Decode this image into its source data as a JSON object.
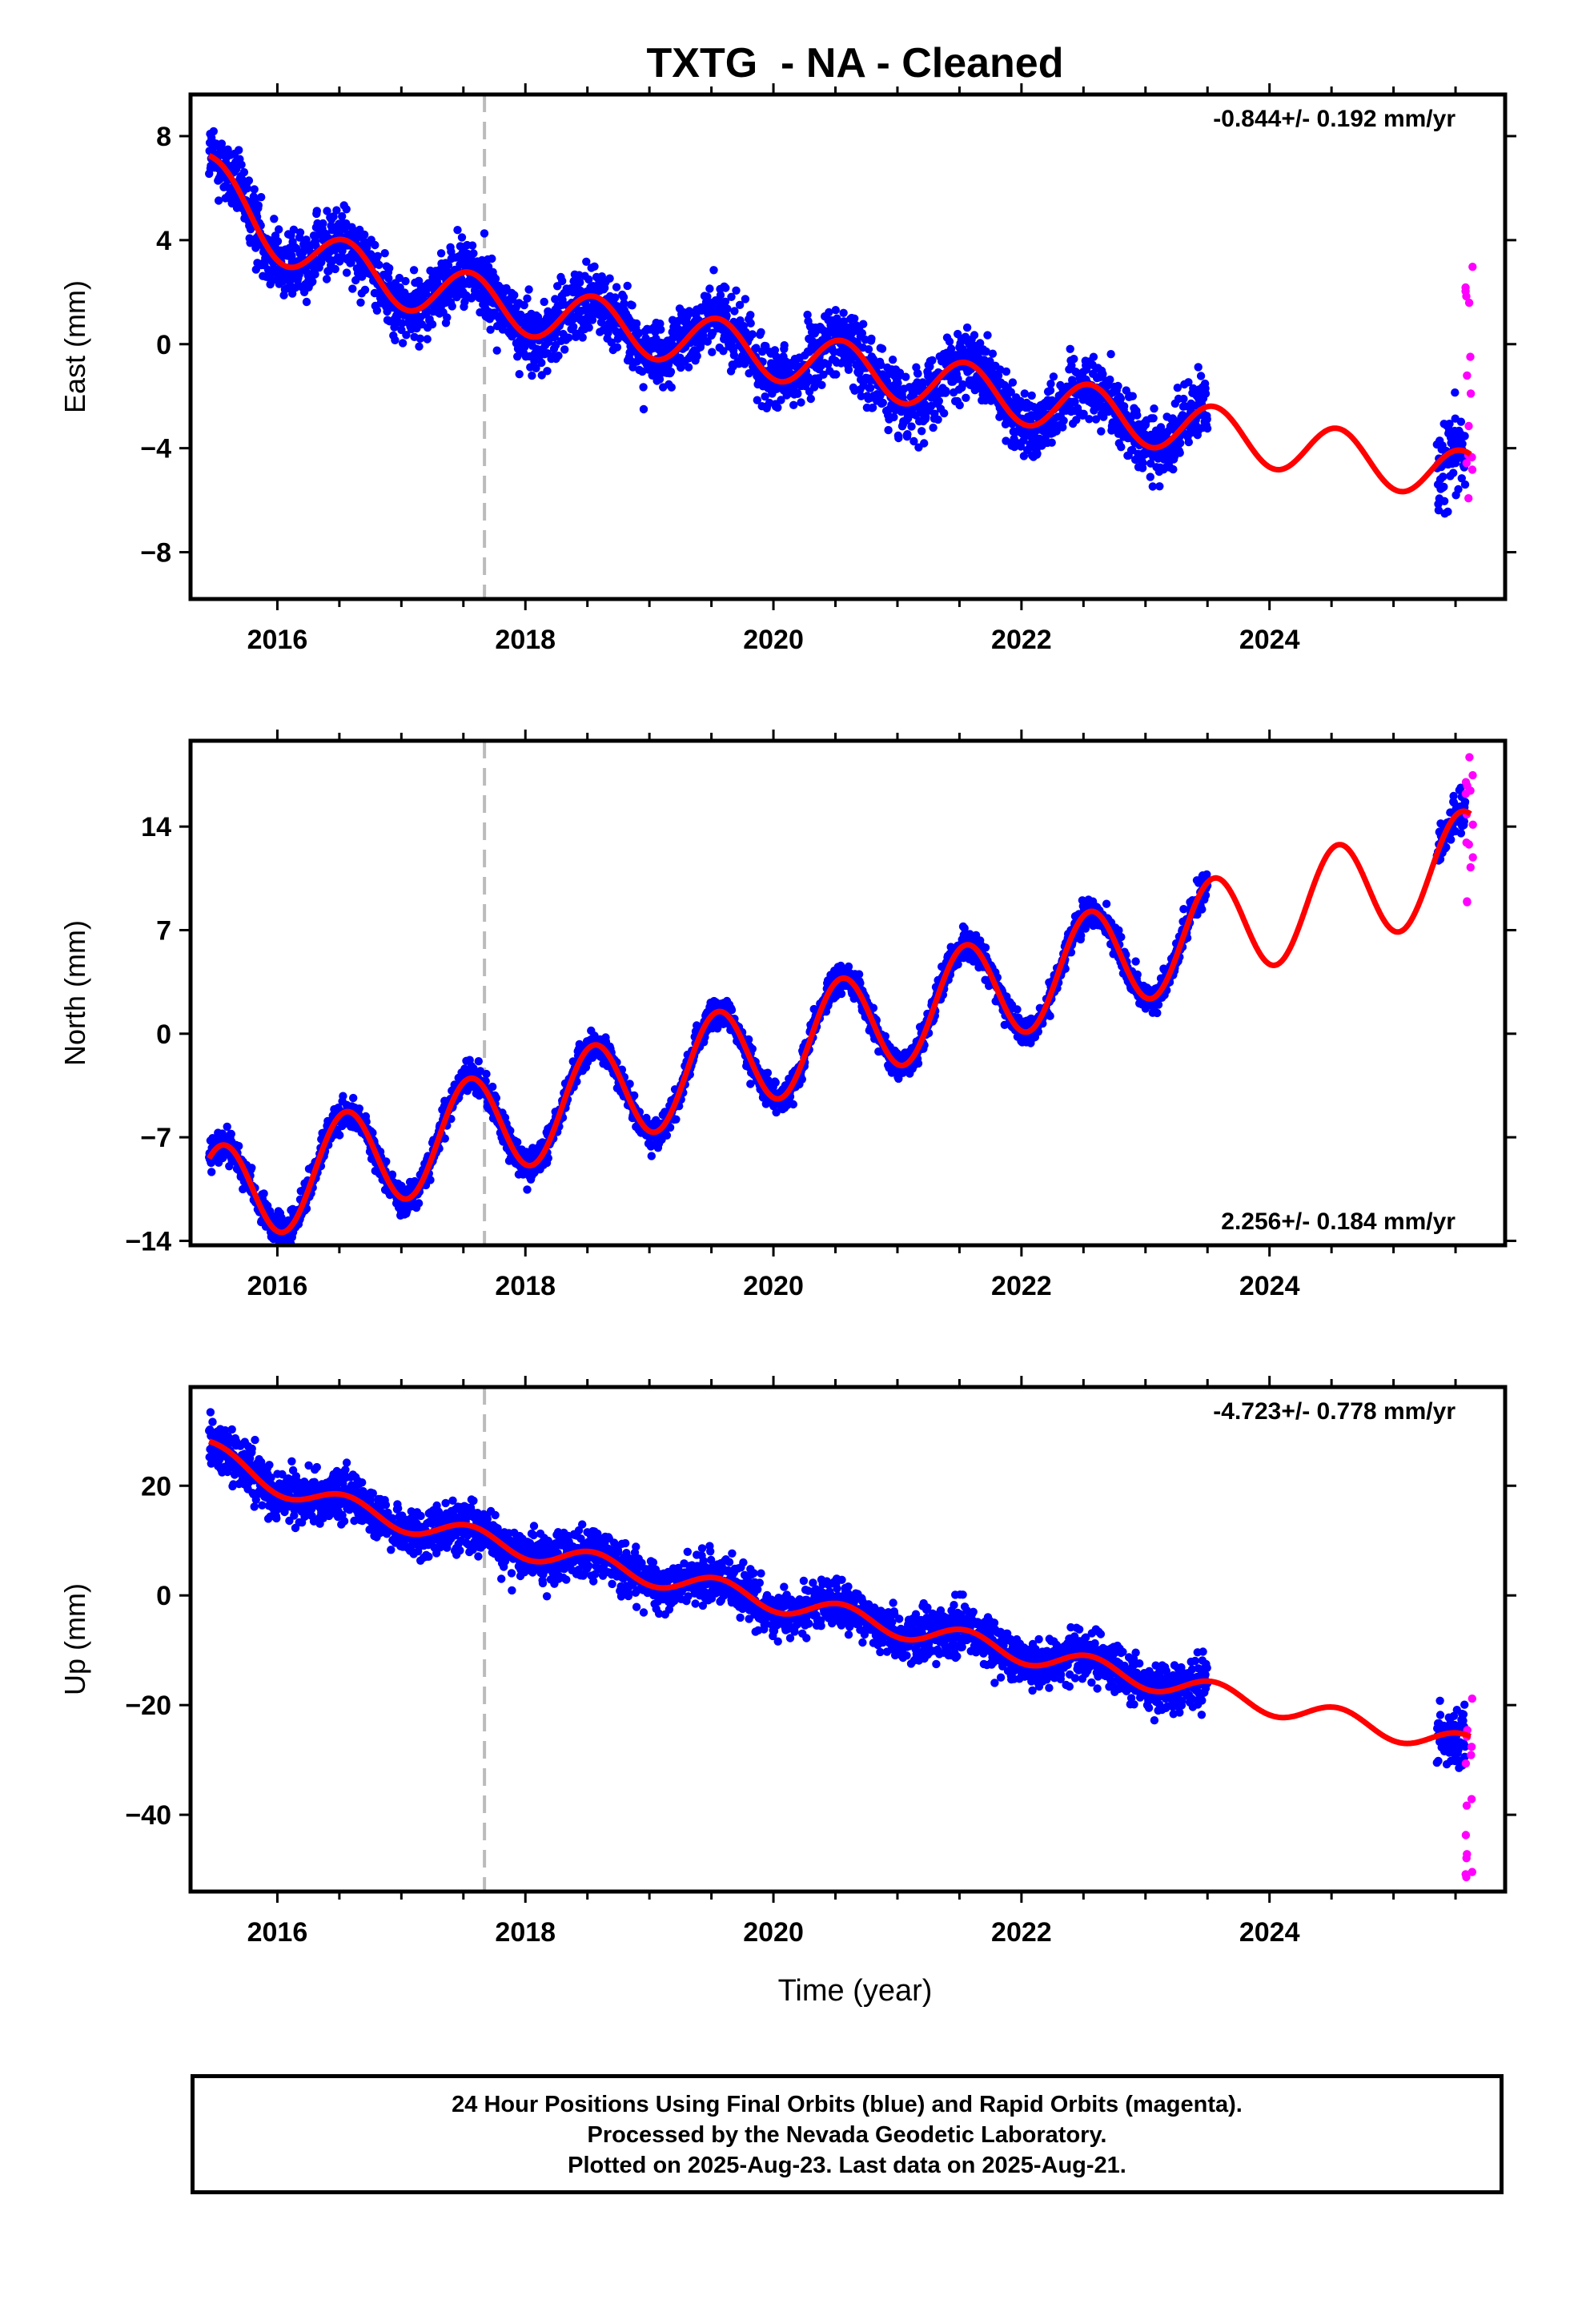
{
  "chart_data": {
    "type": "scatter",
    "title": "TXTG  - NA - Cleaned",
    "xlabel": "Time (year)",
    "x_ticks": [
      2016,
      2018,
      2020,
      2022,
      2024
    ],
    "xlim": [
      2015.3,
      2025.9
    ],
    "event_line_x": 2017.67,
    "colors": {
      "final_orbits": "#0000ff",
      "rapid_orbits": "#ff00ff",
      "model_fit": "#ff0000",
      "event_line": "#bbbbbb"
    },
    "panels": [
      {
        "name": "east",
        "ylabel": "East (mm)",
        "ylim": [
          -9.8,
          9.6
        ],
        "y_ticks": [
          -8,
          -4,
          0,
          4,
          8
        ],
        "rate_text": "-0.844+/- 0.192 mm/yr",
        "rate_position": "top-right",
        "trend": -0.844,
        "intercept_2020": -0.4,
        "seasonal_amp": 1.0,
        "scatter_sd": 1.3,
        "start_offset": 3.0,
        "rapid_y_range": [
          -6,
          4.2
        ]
      },
      {
        "name": "north",
        "ylabel": "North (mm)",
        "ylim": [
          -14.3,
          19.8
        ],
        "y_ticks": [
          -14,
          -7,
          0,
          7,
          14
        ],
        "rate_text": "2.256+/- 0.184 mm/yr",
        "rate_position": "bottom-right",
        "trend": 2.256,
        "intercept_2020": -1.0,
        "seasonal_amp": 3.5,
        "scatter_sd": 1.0,
        "start_offset": 0,
        "rapid_y_range": [
          8.5,
          19
        ]
      },
      {
        "name": "up",
        "ylabel": "Up (mm)",
        "ylim": [
          -54,
          38
        ],
        "y_ticks": [
          -40,
          -20,
          0,
          20
        ],
        "rate_text": "-4.723+/- 0.778 mm/yr",
        "rate_position": "top-right",
        "trend": -4.723,
        "intercept_2020": -1.0,
        "seasonal_amp": 2.0,
        "scatter_sd": 4.5,
        "start_offset": 6.0,
        "rapid_y_range": [
          -52,
          -14
        ]
      }
    ],
    "data_ranges": {
      "final_orbits": [
        [
          2015.45,
          2023.5
        ],
        [
          2025.35,
          2025.58
        ]
      ],
      "rapid_orbits": [
        2025.58,
        2025.64
      ],
      "model_fit": [
        2015.45,
        2025.62
      ]
    }
  },
  "footer": {
    "line1": "24 Hour Positions Using Final Orbits (blue) and Rapid Orbits (magenta).",
    "line2": "Processed by the Nevada Geodetic Laboratory.",
    "line3": "Plotted on 2025-Aug-23. Last data on 2025-Aug-21."
  }
}
